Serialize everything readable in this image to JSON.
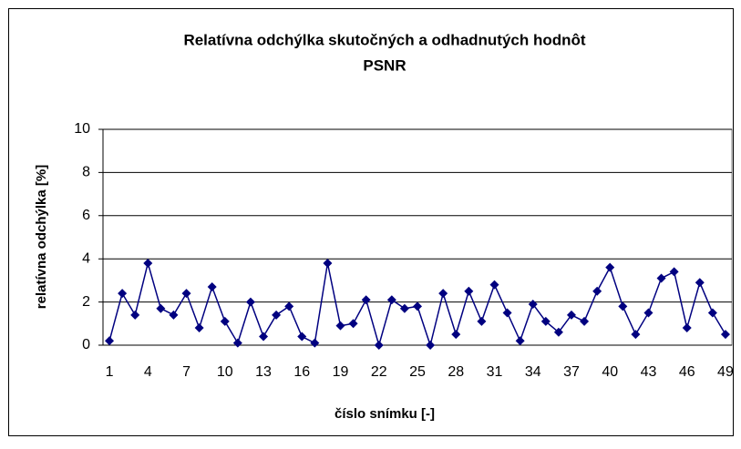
{
  "chart_data": {
    "type": "line",
    "title": [
      "Relatívna odchýlka skutočných a odhadnutých hodnôt",
      "PSNR"
    ],
    "x_label": "číslo snímku [-]",
    "y_label": "relatívna odchýlka [%]",
    "categories": [
      1,
      null,
      null,
      4,
      null,
      null,
      7,
      null,
      null,
      10,
      null,
      null,
      13,
      null,
      null,
      16,
      null,
      null,
      19,
      null,
      null,
      22,
      null,
      null,
      25,
      null,
      null,
      28,
      null,
      null,
      31,
      null,
      null,
      34,
      null,
      null,
      37,
      null,
      null,
      40,
      null,
      null,
      43,
      null,
      null,
      46,
      null,
      null,
      49
    ],
    "series": [
      {
        "name": null,
        "color": "#000080",
        "values": [
          0.2,
          2.4,
          1.4,
          3.8,
          1.7,
          1.4,
          2.4,
          0.8,
          2.7,
          1.1,
          0.1,
          2.0,
          0.4,
          1.4,
          1.8,
          0.4,
          0.1,
          3.8,
          0.9,
          1.0,
          2.1,
          0.0,
          2.1,
          1.7,
          1.8,
          0.0,
          2.4,
          0.5,
          2.5,
          1.1,
          2.8,
          1.5,
          0.2,
          1.9,
          1.1,
          0.6,
          1.4,
          1.1,
          2.5,
          3.6,
          1.8,
          0.5,
          1.5,
          3.1,
          3.4,
          0.8,
          2.9,
          1.5,
          0.5
        ]
      }
    ],
    "ylim": [
      0,
      10
    ],
    "yticks": [
      0,
      2,
      4,
      6,
      8,
      10
    ],
    "grid": true
  }
}
